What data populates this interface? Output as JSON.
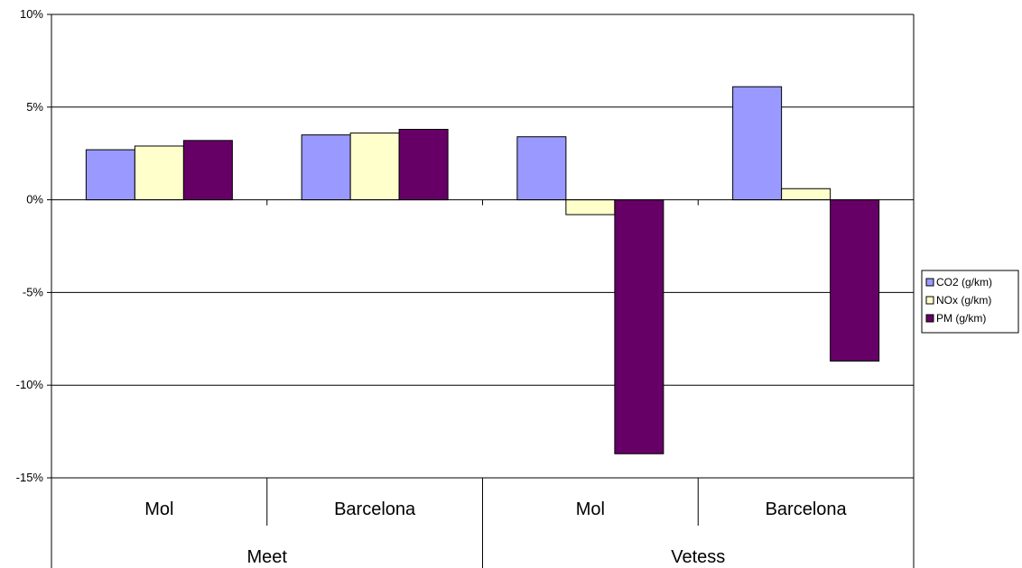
{
  "chart_data": {
    "type": "bar",
    "groups": [
      {
        "label": "Meet",
        "categories": [
          "Mol",
          "Barcelona"
        ]
      },
      {
        "label": "Vetess",
        "categories": [
          "Mol",
          "Barcelona"
        ]
      }
    ],
    "categories": [
      "Mol",
      "Barcelona",
      "Mol",
      "Barcelona"
    ],
    "series": [
      {
        "name": "CO2 (g/km)",
        "color": "#9999ff",
        "values": [
          2.7,
          3.5,
          3.4,
          6.1
        ]
      },
      {
        "name": "NOx (g/km)",
        "color": "#ffffcc",
        "values": [
          2.9,
          3.6,
          -0.8,
          0.6
        ]
      },
      {
        "name": "PM (g/km)",
        "color": "#660066",
        "values": [
          3.2,
          3.8,
          -13.7,
          -8.7
        ]
      }
    ],
    "ylim": [
      -15,
      10
    ],
    "yticks": [
      -15,
      -10,
      -5,
      0,
      5,
      10
    ],
    "ytick_labels": [
      "-15%",
      "-10%",
      "-5%",
      "0%",
      "5%",
      "10%"
    ],
    "grid": true,
    "legend_position": "right"
  }
}
